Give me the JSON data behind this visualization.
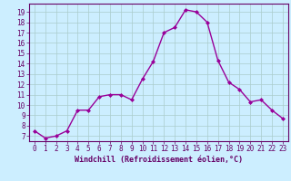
{
  "x": [
    0,
    1,
    2,
    3,
    4,
    5,
    6,
    7,
    8,
    9,
    10,
    11,
    12,
    13,
    14,
    15,
    16,
    17,
    18,
    19,
    20,
    21,
    22,
    23
  ],
  "y": [
    7.5,
    6.8,
    7.0,
    7.5,
    9.5,
    9.5,
    10.8,
    11.0,
    11.0,
    10.5,
    12.5,
    14.2,
    17.0,
    17.5,
    19.2,
    19.0,
    18.0,
    14.3,
    12.2,
    11.5,
    10.3,
    10.5,
    9.5,
    8.7
  ],
  "line_color": "#990099",
  "marker": "D",
  "markersize": 2.0,
  "linewidth": 1.0,
  "bg_color": "#cceeff",
  "grid_color": "#aacccc",
  "xlabel": "Windchill (Refroidissement éolien,°C)",
  "xlabel_color": "#660066",
  "xlabel_fontsize": 6.0,
  "xtick_labels": [
    "0",
    "1",
    "2",
    "3",
    "4",
    "5",
    "6",
    "7",
    "8",
    "9",
    "10",
    "11",
    "12",
    "13",
    "14",
    "15",
    "16",
    "17",
    "18",
    "19",
    "20",
    "21",
    "22",
    "23"
  ],
  "ytick_vals": [
    7,
    8,
    9,
    10,
    11,
    12,
    13,
    14,
    15,
    16,
    17,
    18,
    19
  ],
  "ytick_labels": [
    "7",
    "8",
    "9",
    "10",
    "11",
    "12",
    "13",
    "14",
    "15",
    "16",
    "17",
    "18",
    "19"
  ],
  "ylim": [
    6.5,
    19.8
  ],
  "xlim": [
    -0.5,
    23.5
  ],
  "tick_color": "#660066",
  "tick_fontsize": 5.5,
  "spine_color": "#660066"
}
